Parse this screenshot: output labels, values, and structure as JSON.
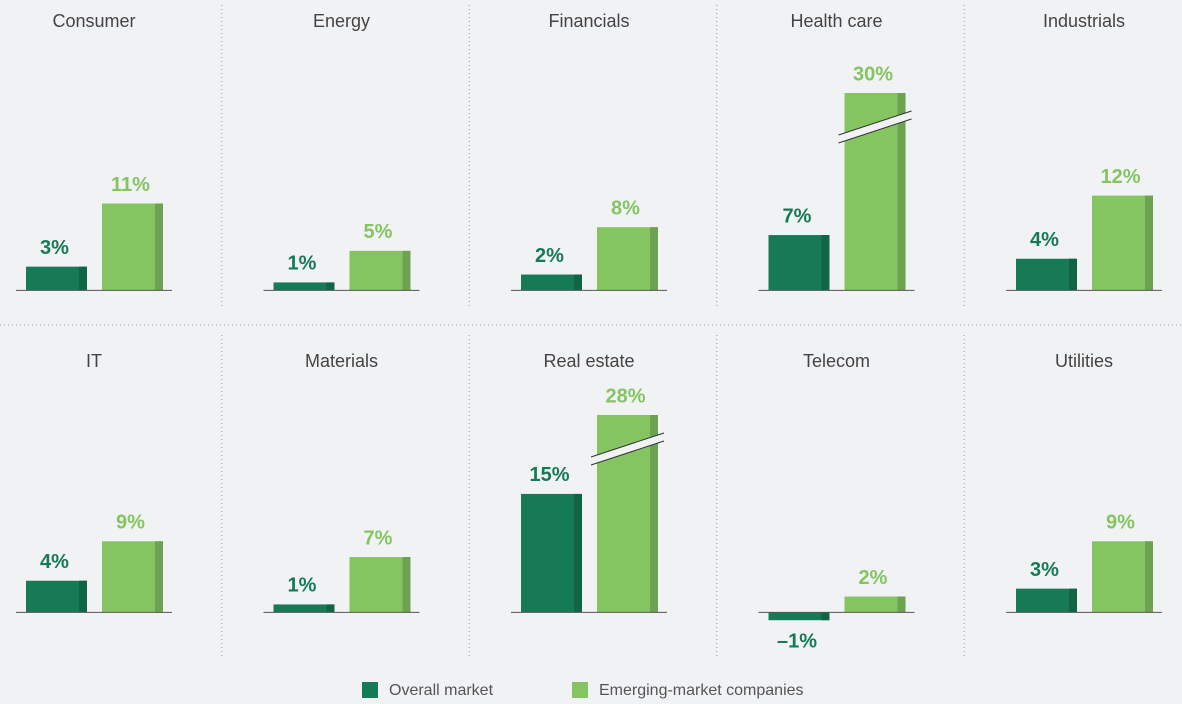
{
  "chart_data": {
    "type": "bar",
    "categories": [
      "Consumer",
      "Energy",
      "Financials",
      "Health care",
      "Industrials",
      "IT",
      "Materials",
      "Real estate",
      "Telecom",
      "Utilities"
    ],
    "series": [
      {
        "name": "Overall market",
        "color": "#157a55",
        "values": [
          3,
          1,
          2,
          7,
          4,
          4,
          1,
          15,
          -1,
          3
        ],
        "value_labels": [
          "3%",
          "1%",
          "2%",
          "7%",
          "4%",
          "4%",
          "1%",
          "15%",
          "–1%",
          "3%"
        ]
      },
      {
        "name": "Emerging-market companies",
        "color": "#84c562",
        "values": [
          11,
          5,
          8,
          30,
          12,
          9,
          7,
          28,
          2,
          9
        ],
        "value_labels": [
          "11%",
          "5%",
          "8%",
          "30%",
          "12%",
          "9%",
          "7%",
          "28%",
          "2%",
          "9%"
        ]
      }
    ],
    "ylim": [
      -3,
      25
    ]
  }
}
